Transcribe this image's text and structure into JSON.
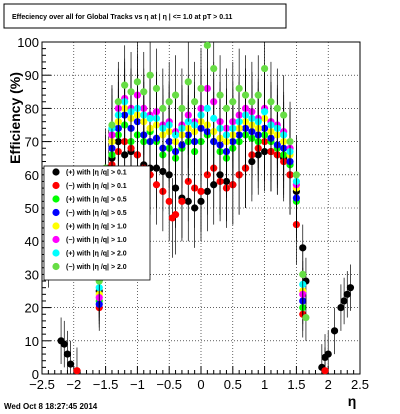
{
  "footer": "Wed Oct  8 18:27:45 2014",
  "chart_data": {
    "type": "scatter",
    "title": "Effeciency over all for Global Tracks vs   η at | η | <= 1.0 at pT > 0.11",
    "xlabel": "η",
    "ylabel": "Efficiency (%)",
    "xlim": [
      -2.5,
      2.5
    ],
    "ylim": [
      0,
      100
    ],
    "x_ticks": [
      -2.5,
      -2,
      -1.5,
      -1,
      -0.5,
      0,
      0.5,
      1,
      1.5,
      2,
      2.5
    ],
    "x_tick_labels": [
      "−2.5",
      "−2",
      "−1.5",
      "−1",
      "−0.5",
      "0",
      "0.5",
      "1",
      "1.5",
      "2",
      "2.5"
    ],
    "y_ticks": [
      0,
      10,
      20,
      30,
      40,
      50,
      60,
      70,
      80,
      90,
      100
    ],
    "grid": true,
    "legend_position": "left-middle",
    "series": [
      {
        "name": "(+) with  |η /q| > 0.1",
        "color": "#000000",
        "points": [
          [
            -2.4,
            33
          ],
          [
            -2.2,
            10
          ],
          [
            -2.15,
            9
          ],
          [
            -2.1,
            6
          ],
          [
            -2.05,
            3
          ],
          [
            -1.6,
            25
          ],
          [
            -1.55,
            35
          ],
          [
            -1.45,
            62
          ],
          [
            -1.4,
            65
          ],
          [
            -1.3,
            70
          ],
          [
            -1.2,
            66
          ],
          [
            -1.1,
            67
          ],
          [
            -1.0,
            66
          ],
          [
            -0.9,
            63
          ],
          [
            -0.8,
            62
          ],
          [
            -0.7,
            62
          ],
          [
            -0.6,
            61
          ],
          [
            -0.5,
            60
          ],
          [
            -0.4,
            56
          ],
          [
            -0.3,
            53
          ],
          [
            -0.2,
            52
          ],
          [
            -0.1,
            50
          ],
          [
            0.0,
            52
          ],
          [
            0.1,
            55
          ],
          [
            0.2,
            57
          ],
          [
            0.3,
            60
          ],
          [
            0.4,
            58
          ],
          [
            0.5,
            57
          ],
          [
            0.6,
            60
          ],
          [
            0.7,
            62
          ],
          [
            0.8,
            64
          ],
          [
            0.9,
            66
          ],
          [
            1.0,
            67
          ],
          [
            1.1,
            67
          ],
          [
            1.2,
            66
          ],
          [
            1.3,
            65
          ],
          [
            1.4,
            60
          ],
          [
            1.5,
            55
          ],
          [
            1.6,
            38
          ],
          [
            1.65,
            28
          ],
          [
            1.9,
            2
          ],
          [
            1.95,
            5
          ],
          [
            2.0,
            6
          ],
          [
            2.1,
            13
          ],
          [
            2.2,
            20
          ],
          [
            2.25,
            22
          ],
          [
            2.3,
            24
          ],
          [
            2.35,
            26
          ]
        ]
      },
      {
        "name": "(−) with  |η /q| > 0.1",
        "color": "#ff0000",
        "points": [
          [
            -1.95,
            1
          ],
          [
            -1.6,
            20
          ],
          [
            -1.5,
            50
          ],
          [
            -1.4,
            63
          ],
          [
            -1.3,
            67
          ],
          [
            -1.2,
            70
          ],
          [
            -1.1,
            68
          ],
          [
            -1.0,
            66
          ],
          [
            -0.9,
            62
          ],
          [
            -0.8,
            60
          ],
          [
            -0.7,
            57
          ],
          [
            -0.6,
            55
          ],
          [
            -0.5,
            52
          ],
          [
            -0.45,
            47
          ],
          [
            -0.4,
            48
          ],
          [
            -0.3,
            52
          ],
          [
            -0.2,
            58
          ],
          [
            -0.1,
            56
          ],
          [
            0.0,
            55
          ],
          [
            0.1,
            60
          ],
          [
            0.2,
            62
          ],
          [
            0.3,
            58
          ],
          [
            0.4,
            56
          ],
          [
            0.5,
            57
          ],
          [
            0.6,
            60
          ],
          [
            0.7,
            62
          ],
          [
            0.8,
            66
          ],
          [
            0.9,
            68
          ],
          [
            1.0,
            70
          ],
          [
            1.1,
            67
          ],
          [
            1.2,
            66
          ],
          [
            1.3,
            64
          ],
          [
            1.4,
            60
          ],
          [
            1.5,
            45
          ],
          [
            1.6,
            18
          ],
          [
            1.95,
            1
          ]
        ]
      },
      {
        "name": "(+) with  |η /q| > 0.5",
        "color": "#00ff00",
        "points": [
          [
            -1.6,
            22
          ],
          [
            -1.5,
            55
          ],
          [
            -1.4,
            66
          ],
          [
            -1.3,
            72
          ],
          [
            -1.2,
            75
          ],
          [
            -1.1,
            70
          ],
          [
            -1.0,
            72
          ],
          [
            -0.9,
            70
          ],
          [
            -0.8,
            73
          ],
          [
            -0.7,
            70
          ],
          [
            -0.6,
            66
          ],
          [
            -0.5,
            68
          ],
          [
            -0.4,
            65
          ],
          [
            -0.3,
            68
          ],
          [
            -0.2,
            70
          ],
          [
            -0.1,
            67
          ],
          [
            0.0,
            70
          ],
          [
            0.1,
            72
          ],
          [
            0.2,
            70
          ],
          [
            0.3,
            67
          ],
          [
            0.4,
            65
          ],
          [
            0.5,
            68
          ],
          [
            0.6,
            70
          ],
          [
            0.7,
            72
          ],
          [
            0.8,
            71
          ],
          [
            0.9,
            70
          ],
          [
            1.0,
            72
          ],
          [
            1.1,
            70
          ],
          [
            1.2,
            68
          ],
          [
            1.3,
            66
          ],
          [
            1.4,
            63
          ],
          [
            1.5,
            52
          ],
          [
            1.6,
            20
          ]
        ]
      },
      {
        "name": "(−) with  |η /q| > 0.5",
        "color": "#0000ff",
        "points": [
          [
            -1.6,
            21
          ],
          [
            -1.5,
            52
          ],
          [
            -1.4,
            68
          ],
          [
            -1.3,
            74
          ],
          [
            -1.2,
            78
          ],
          [
            -1.1,
            74
          ],
          [
            -1.0,
            76
          ],
          [
            -0.9,
            72
          ],
          [
            -0.8,
            70
          ],
          [
            -0.7,
            71
          ],
          [
            -0.6,
            68
          ],
          [
            -0.5,
            70
          ],
          [
            -0.4,
            67
          ],
          [
            -0.3,
            69
          ],
          [
            -0.2,
            72
          ],
          [
            -0.1,
            70
          ],
          [
            0.0,
            74
          ],
          [
            0.1,
            73
          ],
          [
            0.2,
            70
          ],
          [
            0.3,
            69
          ],
          [
            0.4,
            67
          ],
          [
            0.5,
            70
          ],
          [
            0.6,
            72
          ],
          [
            0.7,
            74
          ],
          [
            0.8,
            73
          ],
          [
            0.9,
            72
          ],
          [
            1.0,
            74
          ],
          [
            1.1,
            71
          ],
          [
            1.2,
            69
          ],
          [
            1.3,
            68
          ],
          [
            1.4,
            64
          ],
          [
            1.5,
            53
          ],
          [
            1.6,
            22
          ]
        ]
      },
      {
        "name": "(+) with  |η /q| > 1.0",
        "color": "#ffff00",
        "points": [
          [
            -1.6,
            24
          ],
          [
            -1.5,
            58
          ],
          [
            -1.4,
            70
          ],
          [
            -1.3,
            76
          ],
          [
            -1.2,
            80
          ],
          [
            -1.1,
            77
          ],
          [
            -1.0,
            78
          ],
          [
            -0.9,
            76
          ],
          [
            -0.8,
            74
          ],
          [
            -0.7,
            75
          ],
          [
            -0.6,
            72
          ],
          [
            -0.5,
            73
          ],
          [
            -0.4,
            70
          ],
          [
            -0.3,
            72
          ],
          [
            -0.2,
            74
          ],
          [
            -0.1,
            73
          ],
          [
            0.0,
            76
          ],
          [
            0.1,
            75
          ],
          [
            0.2,
            73
          ],
          [
            0.3,
            71
          ],
          [
            0.4,
            70
          ],
          [
            0.5,
            72
          ],
          [
            0.6,
            74
          ],
          [
            0.7,
            76
          ],
          [
            0.8,
            75
          ],
          [
            0.9,
            74
          ],
          [
            1.0,
            77
          ],
          [
            1.1,
            73
          ],
          [
            1.2,
            72
          ],
          [
            1.3,
            70
          ],
          [
            1.4,
            66
          ],
          [
            1.5,
            56
          ],
          [
            1.6,
            25
          ]
        ]
      },
      {
        "name": "(−) with  |η /q| > 1.0",
        "color": "#ff00ff",
        "points": [
          [
            -1.6,
            23
          ],
          [
            -1.5,
            56
          ],
          [
            -1.4,
            72
          ],
          [
            -1.3,
            80
          ],
          [
            -1.2,
            83
          ],
          [
            -1.1,
            80
          ],
          [
            -1.0,
            84
          ],
          [
            -0.9,
            80
          ],
          [
            -0.8,
            78
          ],
          [
            -0.7,
            79
          ],
          [
            -0.6,
            75
          ],
          [
            -0.5,
            76
          ],
          [
            -0.4,
            73
          ],
          [
            -0.3,
            75
          ],
          [
            -0.2,
            78
          ],
          [
            -0.1,
            76
          ],
          [
            0.0,
            80
          ],
          [
            0.1,
            86
          ],
          [
            0.2,
            82
          ],
          [
            0.3,
            76
          ],
          [
            0.4,
            74
          ],
          [
            0.5,
            76
          ],
          [
            0.6,
            78
          ],
          [
            0.7,
            80
          ],
          [
            0.8,
            79
          ],
          [
            0.9,
            77
          ],
          [
            1.0,
            80
          ],
          [
            1.1,
            76
          ],
          [
            1.2,
            75
          ],
          [
            1.3,
            73
          ],
          [
            1.4,
            68
          ],
          [
            1.5,
            57
          ],
          [
            1.6,
            24
          ]
        ]
      },
      {
        "name": "(+) with  |η /q| > 2.0",
        "color": "#00ffff",
        "points": [
          [
            -1.6,
            26
          ],
          [
            -1.5,
            60
          ],
          [
            -1.4,
            74
          ],
          [
            -1.3,
            78
          ],
          [
            -1.2,
            82
          ],
          [
            -1.1,
            79
          ],
          [
            -1.0,
            80
          ],
          [
            -0.9,
            78
          ],
          [
            -0.8,
            77
          ],
          [
            -0.7,
            77
          ],
          [
            -0.6,
            74
          ],
          [
            -0.5,
            75
          ],
          [
            -0.4,
            72
          ],
          [
            -0.3,
            74
          ],
          [
            -0.2,
            76
          ],
          [
            -0.1,
            75
          ],
          [
            0.0,
            78
          ],
          [
            0.1,
            80
          ],
          [
            0.2,
            77
          ],
          [
            0.3,
            74
          ],
          [
            0.4,
            72
          ],
          [
            0.5,
            74
          ],
          [
            0.6,
            76
          ],
          [
            0.7,
            78
          ],
          [
            0.8,
            77
          ],
          [
            0.9,
            76
          ],
          [
            1.0,
            79
          ],
          [
            1.1,
            75
          ],
          [
            1.2,
            74
          ],
          [
            1.3,
            72
          ],
          [
            1.4,
            67
          ],
          [
            1.5,
            58
          ],
          [
            1.6,
            27
          ]
        ]
      },
      {
        "name": "(−) with  |η /q| > 2.0",
        "color": "#66dd44",
        "points": [
          [
            -1.6,
            28
          ],
          [
            -1.5,
            62
          ],
          [
            -1.4,
            75
          ],
          [
            -1.3,
            82
          ],
          [
            -1.2,
            87
          ],
          [
            -1.1,
            85
          ],
          [
            -1.0,
            88
          ],
          [
            -0.9,
            85
          ],
          [
            -0.8,
            90
          ],
          [
            -0.7,
            86
          ],
          [
            -0.6,
            80
          ],
          [
            -0.5,
            82
          ],
          [
            -0.4,
            84
          ],
          [
            -0.3,
            80
          ],
          [
            -0.2,
            88
          ],
          [
            -0.1,
            82
          ],
          [
            0.0,
            86
          ],
          [
            0.1,
            99
          ],
          [
            0.2,
            92
          ],
          [
            0.3,
            84
          ],
          [
            0.4,
            80
          ],
          [
            0.5,
            82
          ],
          [
            0.6,
            86
          ],
          [
            0.7,
            84
          ],
          [
            0.8,
            82
          ],
          [
            0.9,
            84
          ],
          [
            1.0,
            92
          ],
          [
            1.1,
            82
          ],
          [
            1.2,
            80
          ],
          [
            1.3,
            78
          ],
          [
            1.4,
            70
          ],
          [
            1.5,
            60
          ],
          [
            1.6,
            30
          ],
          [
            1.65,
            17
          ]
        ]
      }
    ]
  }
}
